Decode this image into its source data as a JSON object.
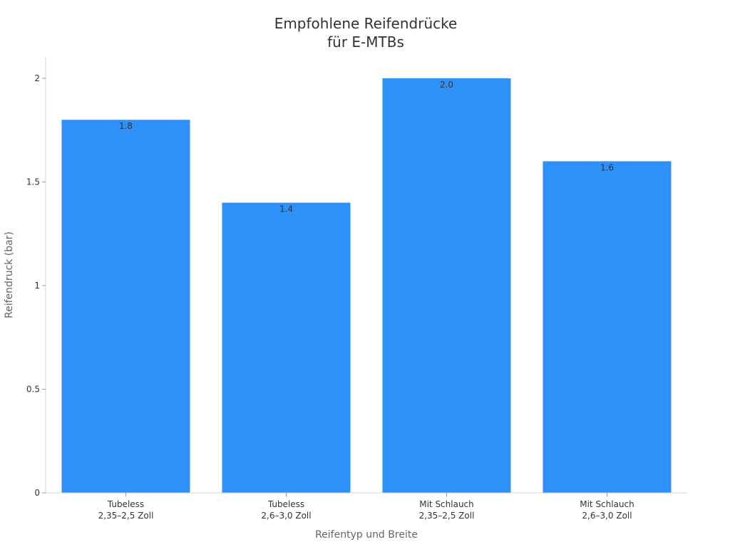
{
  "chart_data": {
    "type": "bar",
    "title_lines": [
      "Empfohlene Reifendrücke",
      "für E-MTBs"
    ],
    "xlabel": "Reifentyp und Breite",
    "ylabel": "Reifendruck (bar)",
    "categories": [
      [
        "Tubeless",
        "2,35–2,5 Zoll"
      ],
      [
        "Tubeless",
        "2,6–3,0 Zoll"
      ],
      [
        "Mit Schlauch",
        "2,35–2,5 Zoll"
      ],
      [
        "Mit Schlauch",
        "2,6–3,0 Zoll"
      ]
    ],
    "values": [
      1.8,
      1.4,
      2.0,
      1.6
    ],
    "value_labels": [
      "1.8",
      "1.4",
      "2.0",
      "1.6"
    ],
    "yticks": [
      0,
      0.5,
      1,
      1.5,
      2
    ],
    "ytick_labels": [
      "0",
      "0.5",
      "1",
      "1.5",
      "2"
    ],
    "ylim": [
      0,
      2.1
    ],
    "grid": false,
    "legend": "none",
    "bar_color": "#2e91fa"
  }
}
